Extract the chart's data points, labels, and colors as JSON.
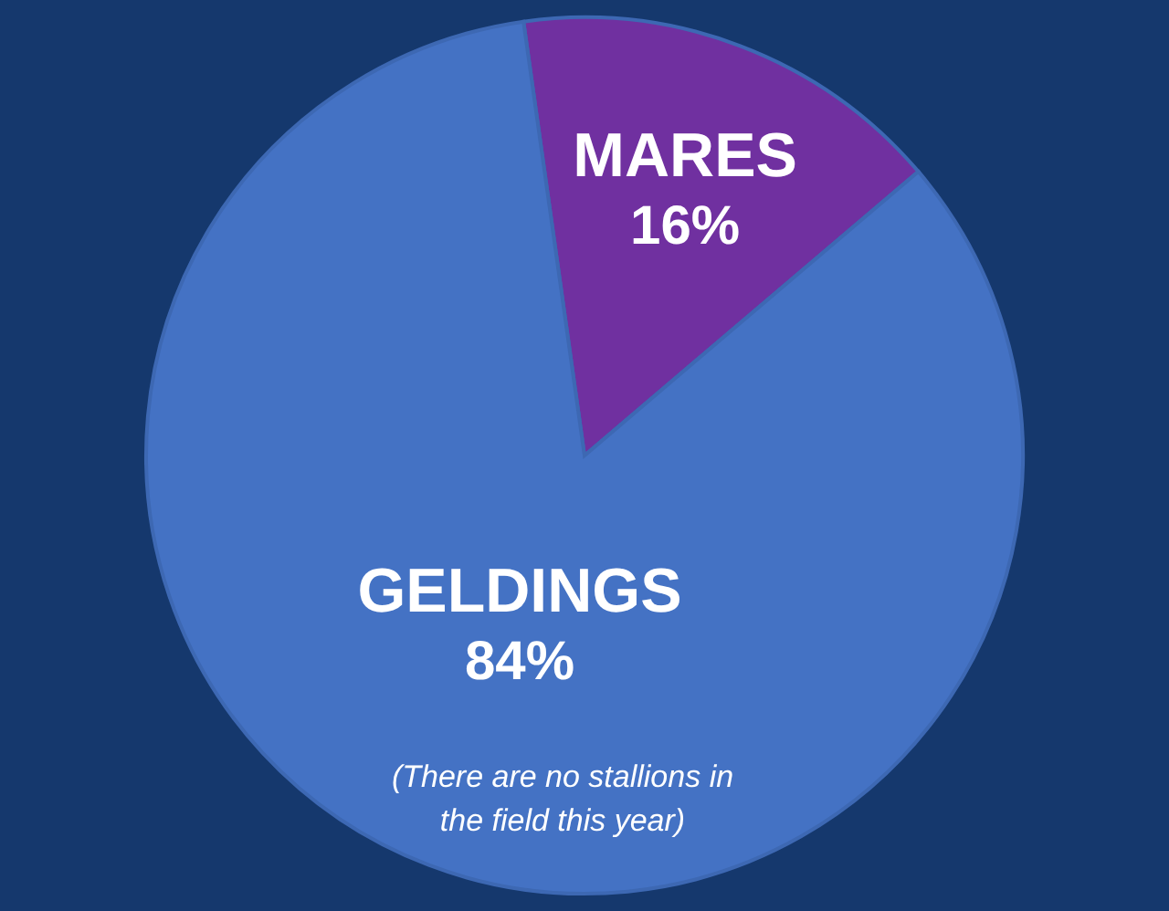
{
  "chart_data": {
    "type": "pie",
    "categories": [
      "MARES",
      "GELDINGS"
    ],
    "values": [
      16,
      84
    ],
    "colors": [
      "#7030a0",
      "#4472c4"
    ],
    "value_labels": [
      "16%",
      "84%"
    ],
    "annotations": [
      "(There are no stallions in the field this year)"
    ]
  }
}
